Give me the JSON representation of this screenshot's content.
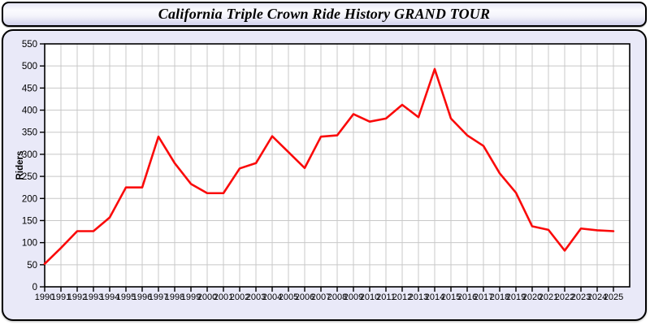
{
  "title_bar": {
    "title": "California Triple Crown Ride History GRAND TOUR"
  },
  "colors": {
    "line": "#fa0a0a",
    "grid": "#c8c8c8",
    "axis": "#000000",
    "plot_background": "#ffffff",
    "panel_background": "#e9e9f8",
    "tick_label": "#000000"
  },
  "chart_data": {
    "type": "line",
    "title": "California Triple Crown Ride History GRAND TOUR",
    "xlabel": "",
    "ylabel": "Riders",
    "legend": false,
    "grid": true,
    "ylim": [
      0,
      550
    ],
    "ytick_step": 50,
    "yticks": [
      0,
      50,
      100,
      150,
      200,
      250,
      300,
      350,
      400,
      450,
      500,
      550
    ],
    "categories": [
      1990,
      1991,
      1992,
      1993,
      1994,
      1995,
      1996,
      1997,
      1998,
      1999,
      2000,
      2001,
      2002,
      2003,
      2004,
      2005,
      2006,
      2007,
      2008,
      2009,
      2010,
      2011,
      2012,
      2013,
      2014,
      2015,
      2016,
      2017,
      2018,
      2019,
      2020,
      2021,
      2022,
      2023,
      2024,
      2025
    ],
    "series": [
      {
        "name": "Riders",
        "values": [
          52,
          88,
          126,
          126,
          157,
          225,
          225,
          340,
          280,
          233,
          212,
          212,
          268,
          280,
          341,
          305,
          269,
          340,
          343,
          391,
          374,
          381,
          412,
          384,
          493,
          381,
          343,
          319,
          257,
          213,
          137,
          129,
          82,
          132,
          128,
          126
        ]
      }
    ]
  }
}
